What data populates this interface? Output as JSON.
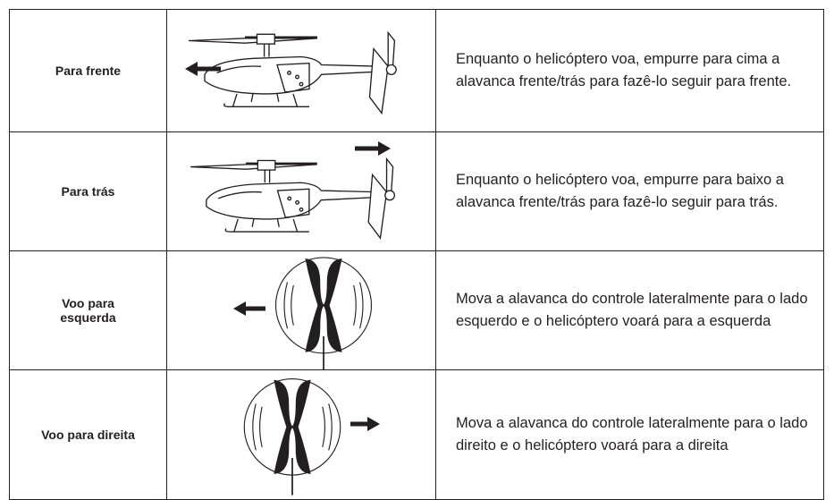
{
  "table": {
    "rows": [
      {
        "label": "Para frente",
        "description": "Enquanto o helicóptero voa, empurre para cima a alavanca frente/trás para fazê-lo seguir para frente."
      },
      {
        "label": "Para trás",
        "description": "Enquanto o helicóptero voa, empurre para baixo a alavanca frente/trás para fazê-lo seguir para trás."
      },
      {
        "label": "Voo para esquerda",
        "description": "Mova a alavanca do controle lateralmente para o lado esquerdo e o helicóptero voará para a esquerda"
      },
      {
        "label": "Voo para direita",
        "description": "Mova a alavanca do controle lateralmente para o lado direito e o helicóptero voará para a direita"
      }
    ]
  }
}
